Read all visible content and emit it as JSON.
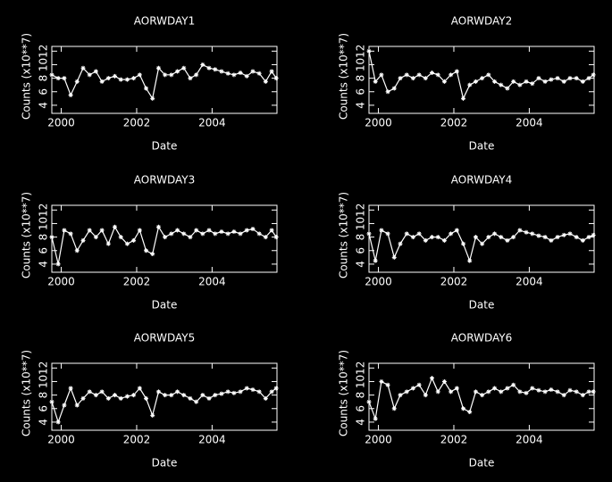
{
  "chart_data": [
    {
      "type": "line",
      "title": "AORWDAY1",
      "xlabel": "Date",
      "ylabel": "Counts (x10**7)",
      "color": "#ffffff",
      "xlim": [
        1999.75,
        2005.72
      ],
      "xticks": [
        2000,
        2002,
        2004
      ],
      "ylim": [
        2.8,
        12.7
      ],
      "yticks": [
        4,
        6,
        8,
        10,
        12
      ],
      "x": [
        1999.75,
        1999.92,
        2000.08,
        2000.25,
        2000.42,
        2000.58,
        2000.75,
        2000.92,
        2001.08,
        2001.25,
        2001.42,
        2001.58,
        2001.75,
        2001.92,
        2002.08,
        2002.25,
        2002.42,
        2002.58,
        2002.75,
        2002.92,
        2003.08,
        2003.25,
        2003.42,
        2003.58,
        2003.75,
        2003.92,
        2004.08,
        2004.25,
        2004.42,
        2004.58,
        2004.75,
        2004.92,
        2005.08,
        2005.25,
        2005.42,
        2005.58,
        2005.7
      ],
      "values": [
        8.5,
        8,
        8,
        5.5,
        7.5,
        9.5,
        8.5,
        9,
        7.5,
        8,
        8.3,
        7.8,
        7.8,
        8,
        8.5,
        6.5,
        5,
        9.5,
        8.5,
        8.5,
        9,
        9.5,
        8,
        8.5,
        10,
        9.5,
        9.3,
        9,
        8.7,
        8.5,
        8.8,
        8.3,
        9,
        8.7,
        7.5,
        9,
        8
      ]
    },
    {
      "type": "line",
      "title": "AORWDAY2",
      "xlabel": "Date",
      "ylabel": "Counts (x10**7)",
      "color": "#ffffff",
      "xlim": [
        1999.75,
        2005.72
      ],
      "xticks": [
        2000,
        2002,
        2004
      ],
      "ylim": [
        2.8,
        12.7
      ],
      "yticks": [
        4,
        6,
        8,
        10,
        12
      ],
      "x": [
        1999.75,
        1999.92,
        2000.08,
        2000.25,
        2000.42,
        2000.58,
        2000.75,
        2000.92,
        2001.08,
        2001.25,
        2001.42,
        2001.58,
        2001.75,
        2001.92,
        2002.08,
        2002.25,
        2002.42,
        2002.58,
        2002.75,
        2002.92,
        2003.08,
        2003.25,
        2003.42,
        2003.58,
        2003.75,
        2003.92,
        2004.08,
        2004.25,
        2004.42,
        2004.58,
        2004.75,
        2004.92,
        2005.08,
        2005.25,
        2005.42,
        2005.58,
        2005.7
      ],
      "values": [
        12,
        7.5,
        8.5,
        6,
        6.5,
        8,
        8.5,
        8,
        8.5,
        8,
        8.8,
        8.5,
        7.5,
        8.5,
        9,
        5,
        7,
        7.5,
        8,
        8.5,
        7.5,
        7,
        6.5,
        7.5,
        7,
        7.5,
        7.2,
        8,
        7.5,
        7.8,
        8,
        7.5,
        8,
        8,
        7.5,
        8,
        8.5
      ]
    },
    {
      "type": "line",
      "title": "AORWDAY3",
      "xlabel": "Date",
      "ylabel": "Counts (x10**7)",
      "color": "#ffffff",
      "xlim": [
        1999.75,
        2005.72
      ],
      "xticks": [
        2000,
        2002,
        2004
      ],
      "ylim": [
        2.8,
        12.7
      ],
      "yticks": [
        4,
        6,
        8,
        10,
        12
      ],
      "x": [
        1999.75,
        1999.92,
        2000.08,
        2000.25,
        2000.42,
        2000.58,
        2000.75,
        2000.92,
        2001.08,
        2001.25,
        2001.42,
        2001.58,
        2001.75,
        2001.92,
        2002.08,
        2002.25,
        2002.42,
        2002.58,
        2002.75,
        2002.92,
        2003.08,
        2003.25,
        2003.42,
        2003.58,
        2003.75,
        2003.92,
        2004.08,
        2004.25,
        2004.42,
        2004.58,
        2004.75,
        2004.92,
        2005.08,
        2005.25,
        2005.42,
        2005.58,
        2005.7
      ],
      "values": [
        8,
        4,
        9,
        8.5,
        6,
        7.5,
        9,
        8,
        9,
        7,
        9.5,
        8,
        7,
        7.5,
        9,
        6,
        5.5,
        9.5,
        8,
        8.5,
        9,
        8.5,
        8,
        9,
        8.5,
        9,
        8.5,
        8.8,
        8.5,
        8.8,
        8.5,
        9,
        9.2,
        8.5,
        8,
        9,
        8
      ]
    },
    {
      "type": "line",
      "title": "AORWDAY4",
      "xlabel": "Date",
      "ylabel": "Counts (x10**7)",
      "color": "#ffffff",
      "xlim": [
        1999.75,
        2005.72
      ],
      "xticks": [
        2000,
        2002,
        2004
      ],
      "ylim": [
        2.8,
        12.7
      ],
      "yticks": [
        4,
        6,
        8,
        10,
        12
      ],
      "x": [
        1999.75,
        1999.92,
        2000.08,
        2000.25,
        2000.42,
        2000.58,
        2000.75,
        2000.92,
        2001.08,
        2001.25,
        2001.42,
        2001.58,
        2001.75,
        2001.92,
        2002.08,
        2002.25,
        2002.42,
        2002.58,
        2002.75,
        2002.92,
        2003.08,
        2003.25,
        2003.42,
        2003.58,
        2003.75,
        2003.92,
        2004.08,
        2004.25,
        2004.42,
        2004.58,
        2004.75,
        2004.92,
        2005.08,
        2005.25,
        2005.42,
        2005.58,
        2005.7
      ],
      "values": [
        8.5,
        4.5,
        9,
        8.5,
        5,
        7,
        8.5,
        8,
        8.5,
        7.5,
        8,
        8,
        7.5,
        8.5,
        9,
        7,
        4.5,
        8,
        7,
        8,
        8.5,
        8,
        7.5,
        8,
        9,
        8.7,
        8.5,
        8.2,
        8,
        7.5,
        8,
        8.3,
        8.5,
        8,
        7.5,
        8,
        8.3
      ]
    },
    {
      "type": "line",
      "title": "AORWDAY5",
      "xlabel": "Date",
      "ylabel": "Counts (x10**7)",
      "color": "#ffffff",
      "xlim": [
        1999.75,
        2005.72
      ],
      "xticks": [
        2000,
        2002,
        2004
      ],
      "ylim": [
        2.8,
        12.7
      ],
      "yticks": [
        4,
        6,
        8,
        10,
        12
      ],
      "x": [
        1999.75,
        1999.92,
        2000.08,
        2000.25,
        2000.42,
        2000.58,
        2000.75,
        2000.92,
        2001.08,
        2001.25,
        2001.42,
        2001.58,
        2001.75,
        2001.92,
        2002.08,
        2002.25,
        2002.42,
        2002.58,
        2002.75,
        2002.92,
        2003.08,
        2003.25,
        2003.42,
        2003.58,
        2003.75,
        2003.92,
        2004.08,
        2004.25,
        2004.42,
        2004.58,
        2004.75,
        2004.92,
        2005.08,
        2005.25,
        2005.42,
        2005.58,
        2005.7
      ],
      "values": [
        7,
        4,
        6.5,
        9,
        6.5,
        7.5,
        8.5,
        8,
        8.5,
        7.5,
        8,
        7.5,
        7.8,
        8,
        9,
        7.5,
        5,
        8.5,
        8,
        8,
        8.5,
        8,
        7.5,
        7,
        8,
        7.5,
        8,
        8.2,
        8.5,
        8.3,
        8.5,
        9,
        8.8,
        8.5,
        7.5,
        8.5,
        9
      ]
    },
    {
      "type": "line",
      "title": "AORWDAY6",
      "xlabel": "Date",
      "ylabel": "Counts (x10**7)",
      "color": "#ffffff",
      "xlim": [
        1999.75,
        2005.72
      ],
      "xticks": [
        2000,
        2002,
        2004
      ],
      "ylim": [
        2.8,
        12.7
      ],
      "yticks": [
        4,
        6,
        8,
        10,
        12
      ],
      "x": [
        1999.75,
        1999.92,
        2000.08,
        2000.25,
        2000.42,
        2000.58,
        2000.75,
        2000.92,
        2001.08,
        2001.25,
        2001.42,
        2001.58,
        2001.75,
        2001.92,
        2002.08,
        2002.25,
        2002.42,
        2002.58,
        2002.75,
        2002.92,
        2003.08,
        2003.25,
        2003.42,
        2003.58,
        2003.75,
        2003.92,
        2004.08,
        2004.25,
        2004.42,
        2004.58,
        2004.75,
        2004.92,
        2005.08,
        2005.25,
        2005.42,
        2005.58,
        2005.7
      ],
      "values": [
        7,
        4.5,
        10,
        9.5,
        6,
        8,
        8.5,
        9,
        9.5,
        8,
        10.5,
        8.5,
        10,
        8.5,
        9,
        6,
        5.5,
        8.5,
        8,
        8.5,
        9,
        8.5,
        9,
        9.5,
        8.5,
        8.3,
        9,
        8.7,
        8.5,
        8.8,
        8.5,
        8,
        8.7,
        8.5,
        8,
        8.5,
        8.5
      ]
    }
  ]
}
